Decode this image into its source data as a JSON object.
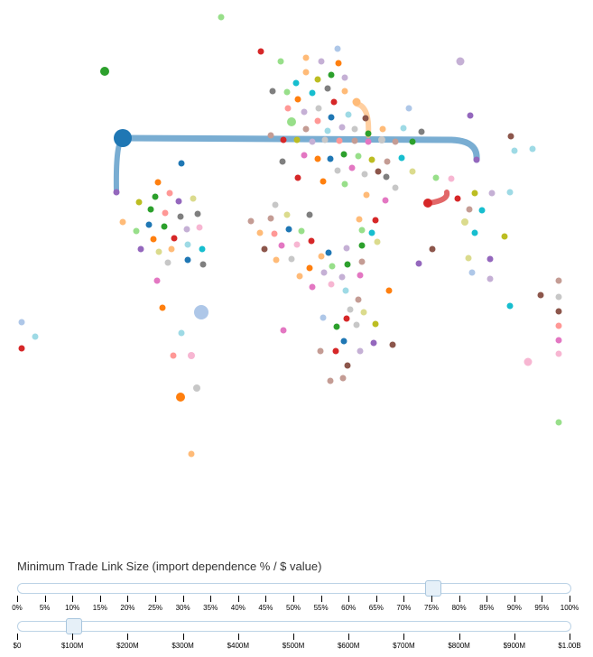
{
  "controls": {
    "title": "Minimum Trade Link Size (import dependence % / $ value)",
    "percent_slider": {
      "value": 0.75,
      "ticks": [
        "0%",
        "5%",
        "10%",
        "15%",
        "20%",
        "25%",
        "30%",
        "35%",
        "40%",
        "45%",
        "50%",
        "55%",
        "60%",
        "65%",
        "70%",
        "75%",
        "80%",
        "85%",
        "90%",
        "95%",
        "100%"
      ]
    },
    "value_slider": {
      "value": 0.1,
      "ticks": [
        "$0",
        "$100M",
        "$200M",
        "$300M",
        "$400M",
        "$500M",
        "$600M",
        "$700M",
        "$800M",
        "$900M",
        "$1.00B"
      ]
    }
  },
  "colors": {
    "link_blue": "#1f77b4",
    "link_red": "#d62728",
    "link_orange": "#ffbb78",
    "slider_border": "#bcd3e6"
  }
}
